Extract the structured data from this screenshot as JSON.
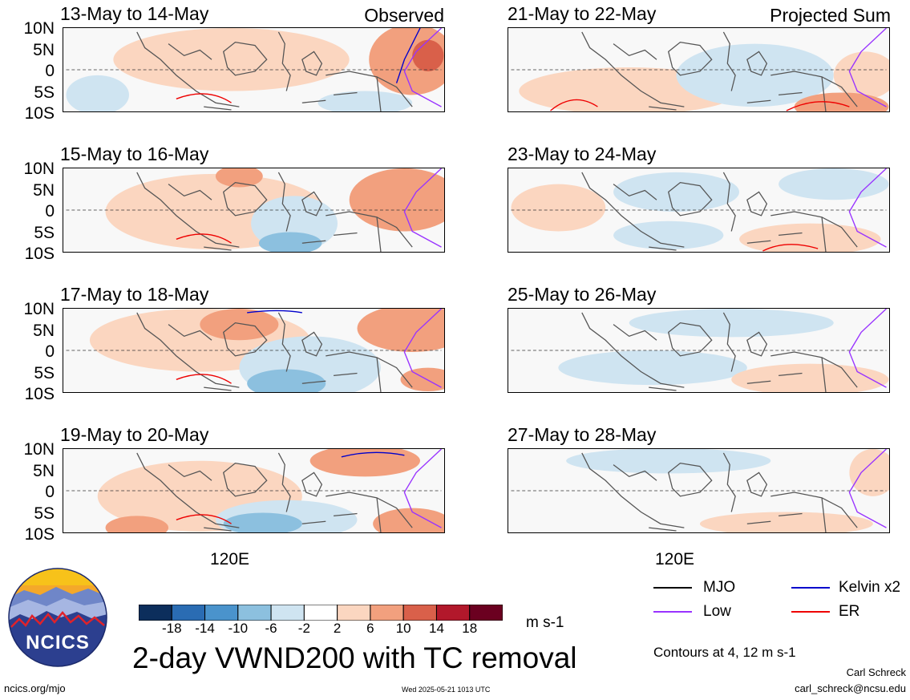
{
  "title": "2-day VWND200 with TC removal",
  "units": "m s-1",
  "contours_note": "Contours at 4, 12 m s-1",
  "footer": {
    "url": "ncics.org/mjo",
    "timestamp": "Wed 2025-05-21 1013 UTC",
    "author": "Carl Schreck",
    "email": "carl_schreck@ncsu.edu"
  },
  "logo_text": "NCICS",
  "lat_ticks": [
    "10N",
    "5N",
    "0",
    "5S",
    "10S"
  ],
  "lon_tick": "120E",
  "panels_left": [
    {
      "title": "13-May to 14-May",
      "tag": "Observed"
    },
    {
      "title": "15-May to 16-May",
      "tag": ""
    },
    {
      "title": "17-May to 18-May",
      "tag": ""
    },
    {
      "title": "19-May to 20-May",
      "tag": ""
    }
  ],
  "panels_right": [
    {
      "title": "21-May to 22-May",
      "tag": "Projected Sum"
    },
    {
      "title": "23-May to 24-May",
      "tag": ""
    },
    {
      "title": "25-May to 26-May",
      "tag": ""
    },
    {
      "title": "27-May to 28-May",
      "tag": ""
    }
  ],
  "colorbar": {
    "labels": [
      "-18",
      "-14",
      "-10",
      "-6",
      "-2",
      "2",
      "6",
      "10",
      "14",
      "18"
    ],
    "colors": [
      "#0c2e5c",
      "#2a6cb3",
      "#4a93cc",
      "#8cc0df",
      "#cfe4f1",
      "#ffffff",
      "#fbd6c0",
      "#f2a07e",
      "#d9604a",
      "#b2182b",
      "#6b0020"
    ]
  },
  "legend": [
    {
      "label": "MJO",
      "color": "#000000"
    },
    {
      "label": "Kelvin x2",
      "color": "#0000cc"
    },
    {
      "label": "Low",
      "color": "#9933ff"
    },
    {
      "label": "ER",
      "color": "#ee0000"
    }
  ]
}
